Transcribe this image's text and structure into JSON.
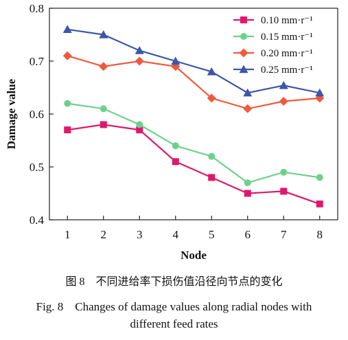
{
  "caption": {
    "cn": "图 8　不同进给率下损伤值沿径向节点的变化",
    "en_line1": "Fig. 8　Changes of damage values along radial nodes with",
    "en_line2": "different feed rates"
  },
  "chart_data": {
    "type": "line",
    "title": "",
    "xlabel": "Node",
    "ylabel": "Damage value",
    "x": [
      1,
      2,
      3,
      4,
      5,
      6,
      7,
      8
    ],
    "xlim": [
      0.5,
      8.5
    ],
    "ylim": [
      0.4,
      0.8
    ],
    "yticks": [
      0.4,
      0.5,
      0.6,
      0.7,
      0.8
    ],
    "ytick_labels": [
      "0.4",
      "0.5",
      "0.6",
      "0.7",
      "0.8"
    ],
    "xticks": [
      1,
      2,
      3,
      4,
      5,
      6,
      7,
      8
    ],
    "grid": false,
    "legend_position": "top-right",
    "series": [
      {
        "name": "0.10 mm·r⁻¹",
        "marker": "square",
        "color": "#e0186a",
        "values": [
          0.57,
          0.58,
          0.57,
          0.51,
          0.48,
          0.45,
          0.454,
          0.43
        ]
      },
      {
        "name": "0.15 mm·r⁻¹",
        "marker": "circle",
        "color": "#6ed18a",
        "values": [
          0.62,
          0.61,
          0.58,
          0.54,
          0.52,
          0.47,
          0.49,
          0.48
        ]
      },
      {
        "name": "0.20 mm·r⁻¹",
        "marker": "diamond",
        "color": "#ef5a3c",
        "values": [
          0.71,
          0.69,
          0.7,
          0.69,
          0.63,
          0.61,
          0.624,
          0.63
        ]
      },
      {
        "name": "0.25 mm·r⁻¹",
        "marker": "triangle",
        "color": "#3e56a8",
        "values": [
          0.76,
          0.75,
          0.72,
          0.7,
          0.68,
          0.64,
          0.654,
          0.64
        ]
      }
    ]
  }
}
